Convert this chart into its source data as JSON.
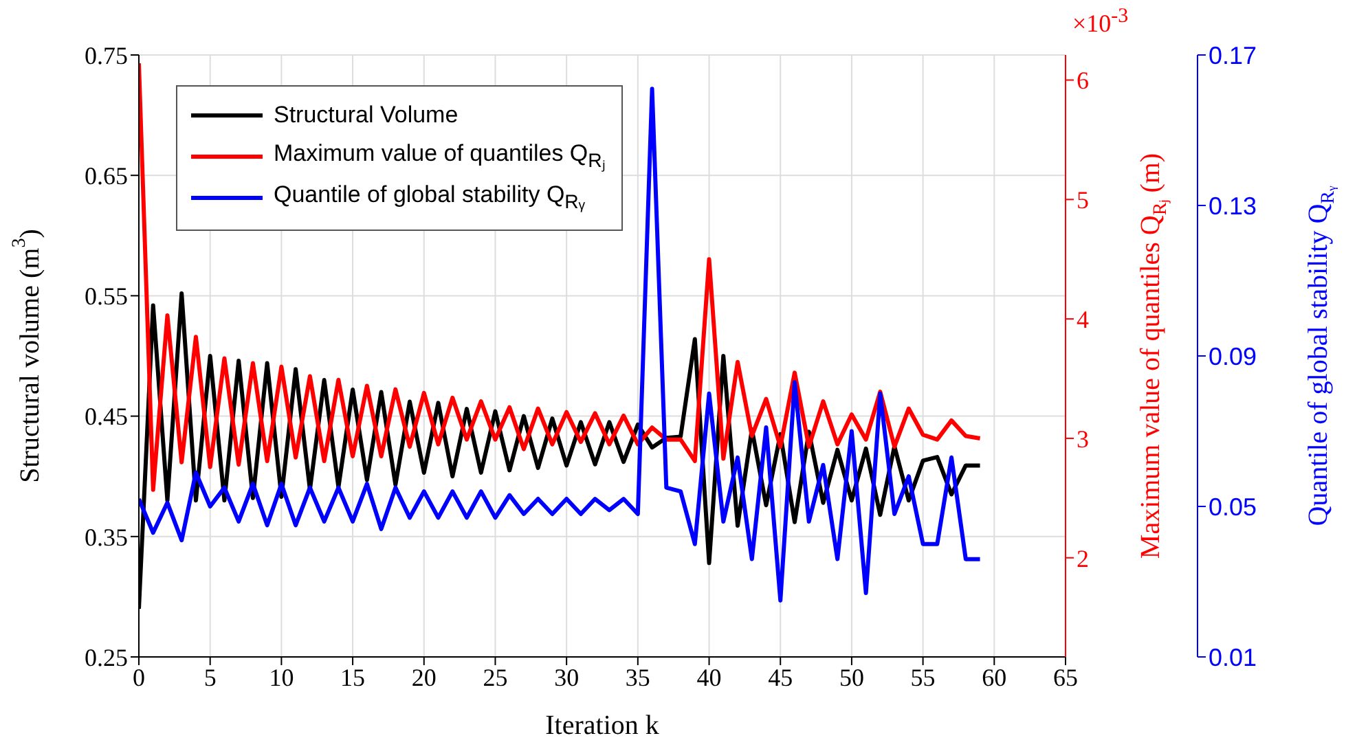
{
  "chart_data": {
    "type": "line",
    "xlabel": "Iteration k",
    "ylabel": "Structural volume (m$^{3}$)",
    "y2label": "Maximum value of quantiles Q$_{Rⱼ}$ (m)",
    "y3label": "Quantile of global stability Q$_{Rᵧ}$",
    "annotations": [
      "×10$^{-3}$"
    ],
    "x": [
      0,
      1,
      2,
      3,
      4,
      5,
      6,
      7,
      8,
      9,
      10,
      11,
      12,
      13,
      14,
      15,
      16,
      17,
      18,
      19,
      20,
      21,
      22,
      23,
      24,
      25,
      26,
      27,
      28,
      29,
      30,
      31,
      32,
      33,
      34,
      35,
      36,
      37,
      38,
      39,
      40,
      41,
      42,
      43,
      44,
      45,
      46,
      47,
      48,
      49,
      50,
      51,
      52,
      53,
      54,
      55,
      56,
      57,
      58,
      59
    ],
    "series": [
      {
        "name": "Structural Volume",
        "color": "#000000",
        "values": [
          0.29,
          0.542,
          0.38,
          0.552,
          0.38,
          0.5,
          0.38,
          0.496,
          0.382,
          0.494,
          0.383,
          0.489,
          0.389,
          0.48,
          0.391,
          0.472,
          0.397,
          0.47,
          0.393,
          0.462,
          0.403,
          0.461,
          0.4,
          0.456,
          0.403,
          0.454,
          0.405,
          0.45,
          0.407,
          0.448,
          0.409,
          0.445,
          0.41,
          0.445,
          0.412,
          0.443,
          0.424,
          0.432,
          0.433,
          0.514,
          0.328,
          0.5,
          0.359,
          0.439,
          0.376,
          0.435,
          0.362,
          0.437,
          0.378,
          0.422,
          0.38,
          0.423,
          0.368,
          0.425,
          0.38,
          0.413,
          0.416,
          0.385,
          0.409,
          0.409
        ]
      },
      {
        "name": "Maximum value of quantiles Q$_{Rⱼ}$",
        "color": "#ff0000",
        "axis": "y2",
        "values": [
          6.14,
          2.57,
          4.03,
          2.8,
          3.85,
          2.76,
          3.67,
          2.78,
          3.63,
          2.81,
          3.6,
          2.84,
          3.52,
          2.81,
          3.49,
          2.85,
          3.44,
          2.85,
          3.41,
          2.93,
          3.38,
          2.95,
          3.34,
          2.99,
          3.31,
          2.99,
          3.26,
          2.91,
          3.25,
          2.95,
          3.22,
          2.97,
          3.21,
          2.95,
          3.19,
          2.95,
          3.09,
          2.99,
          2.99,
          2.81,
          4.5,
          2.83,
          3.64,
          3.02,
          3.33,
          2.93,
          3.55,
          2.93,
          3.31,
          2.95,
          3.2,
          2.99,
          3.39,
          2.93,
          3.25,
          3.03,
          2.99,
          3.15,
          3.02,
          3.0
        ]
      },
      {
        "name": "Quantile of global stability Q$_{Rᵧ}$",
        "color": "#0000ff",
        "axis": "y3",
        "values": [
          0.052,
          0.043,
          0.051,
          0.041,
          0.059,
          0.05,
          0.055,
          0.046,
          0.056,
          0.045,
          0.056,
          0.045,
          0.055,
          0.046,
          0.055,
          0.046,
          0.056,
          0.044,
          0.055,
          0.047,
          0.054,
          0.047,
          0.054,
          0.047,
          0.054,
          0.047,
          0.053,
          0.048,
          0.052,
          0.048,
          0.052,
          0.048,
          0.052,
          0.049,
          0.052,
          0.048,
          0.161,
          0.055,
          0.054,
          0.04,
          0.08,
          0.046,
          0.063,
          0.036,
          0.071,
          0.025,
          0.083,
          0.046,
          0.061,
          0.036,
          0.07,
          0.027,
          0.08,
          0.048,
          0.058,
          0.04,
          0.04,
          0.063,
          0.036,
          0.036
        ]
      }
    ],
    "xlim": [
      0,
      65
    ],
    "xticks": [
      0,
      5,
      10,
      15,
      20,
      25,
      30,
      35,
      40,
      45,
      50,
      55,
      60,
      65
    ],
    "ylim": [
      0.25,
      0.75
    ],
    "yticks": [
      0.25,
      0.35,
      0.45,
      0.55,
      0.65,
      0.75
    ],
    "y2lim": [
      1.17,
      6.21
    ],
    "y2ticks": [
      2,
      3,
      4,
      5,
      6
    ],
    "y3lim": [
      0.01,
      0.17
    ],
    "y3ticks": [
      0.01,
      0.05,
      0.09,
      0.13,
      0.17
    ],
    "grid": true,
    "legend": "top left",
    "line_style": "solid"
  }
}
